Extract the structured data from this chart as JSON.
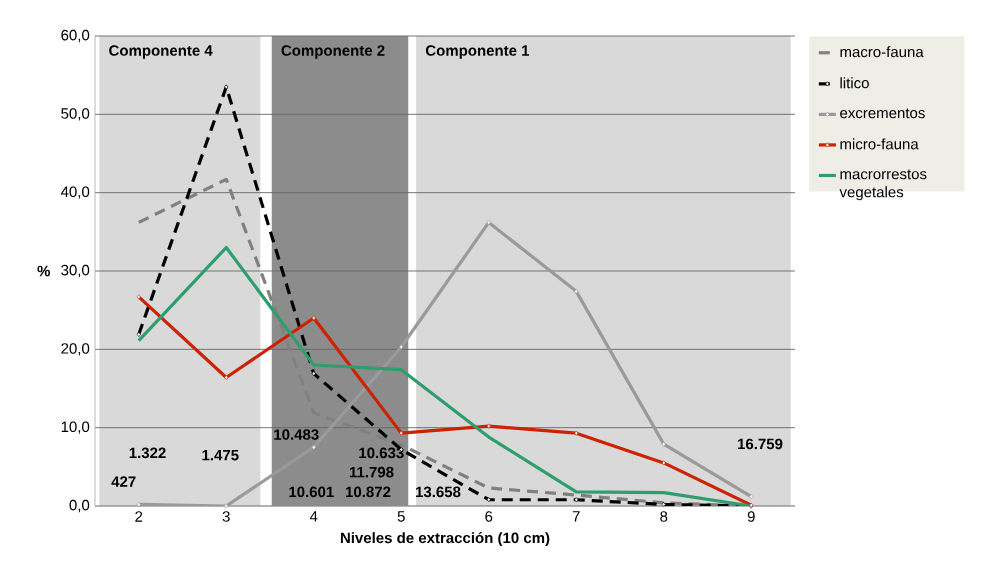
{
  "chart_data": {
    "type": "line",
    "xlabel": "Niveles de extracción (10 cm)",
    "ylabel": "%",
    "x": [
      2,
      3,
      4,
      5,
      6,
      7,
      8,
      9
    ],
    "xlim": [
      1.5,
      9.5
    ],
    "xticks": [
      2,
      3,
      4,
      5,
      6,
      7,
      8,
      9
    ],
    "ylim": [
      0,
      60
    ],
    "yticks": [
      {
        "value": 0,
        "label": "0,0"
      },
      {
        "value": 10,
        "label": "10,0"
      },
      {
        "value": 20,
        "label": "20,0"
      },
      {
        "value": 30,
        "label": "30,0"
      },
      {
        "value": 40,
        "label": "40,0"
      },
      {
        "value": 50,
        "label": "50,0"
      },
      {
        "value": 60,
        "label": "60,0"
      }
    ],
    "grid": "y",
    "legend": "right",
    "series": [
      {
        "name": "macro-fauna",
        "color": "#808080",
        "line_style": "dashed",
        "marker": "none",
        "values": [
          36.2,
          41.7,
          11.9,
          7.8,
          2.3,
          1.4,
          0.4,
          0.0
        ]
      },
      {
        "name": "litico",
        "color": "#000000",
        "line_style": "dashed",
        "marker": "diamond",
        "values": [
          21.9,
          53.5,
          16.9,
          7.2,
          0.8,
          0.8,
          0.2,
          0.0
        ]
      },
      {
        "name": "excrementos",
        "color": "#9a9a9a",
        "line_style": "solid",
        "marker": "diamond",
        "values": [
          0.2,
          0.0,
          7.5,
          20.3,
          36.2,
          27.4,
          7.9,
          1.2
        ]
      },
      {
        "name": "micro-fauna",
        "color": "#cc2200",
        "line_style": "solid",
        "marker": "diamond",
        "values": [
          26.7,
          16.4,
          24.0,
          9.3,
          10.2,
          9.3,
          5.5,
          0.1
        ]
      },
      {
        "name": "macrorrestos vegetales",
        "color": "#2e9e6e",
        "line_style": "solid",
        "marker": "none",
        "values": [
          21.1,
          33.0,
          18.0,
          17.4,
          8.8,
          1.8,
          1.7,
          0.0
        ]
      }
    ],
    "bands": [
      {
        "axis": "x",
        "from": 1.55,
        "to": 3.39,
        "label": "Componente 4",
        "color": "#d9d9d9"
      },
      {
        "axis": "x",
        "from": 3.52,
        "to": 5.08,
        "label": "Componente 2",
        "color": "#8c8c8c"
      },
      {
        "axis": "x",
        "from": 5.17,
        "to": 9.45,
        "label": "Componente 1",
        "color": "#d9d9d9"
      }
    ],
    "annotations": [
      "427",
      "1.322",
      "1.475",
      "10.483",
      "10.601",
      "10.633",
      "11.798",
      "10.872",
      "13.658",
      "16.759"
    ]
  }
}
